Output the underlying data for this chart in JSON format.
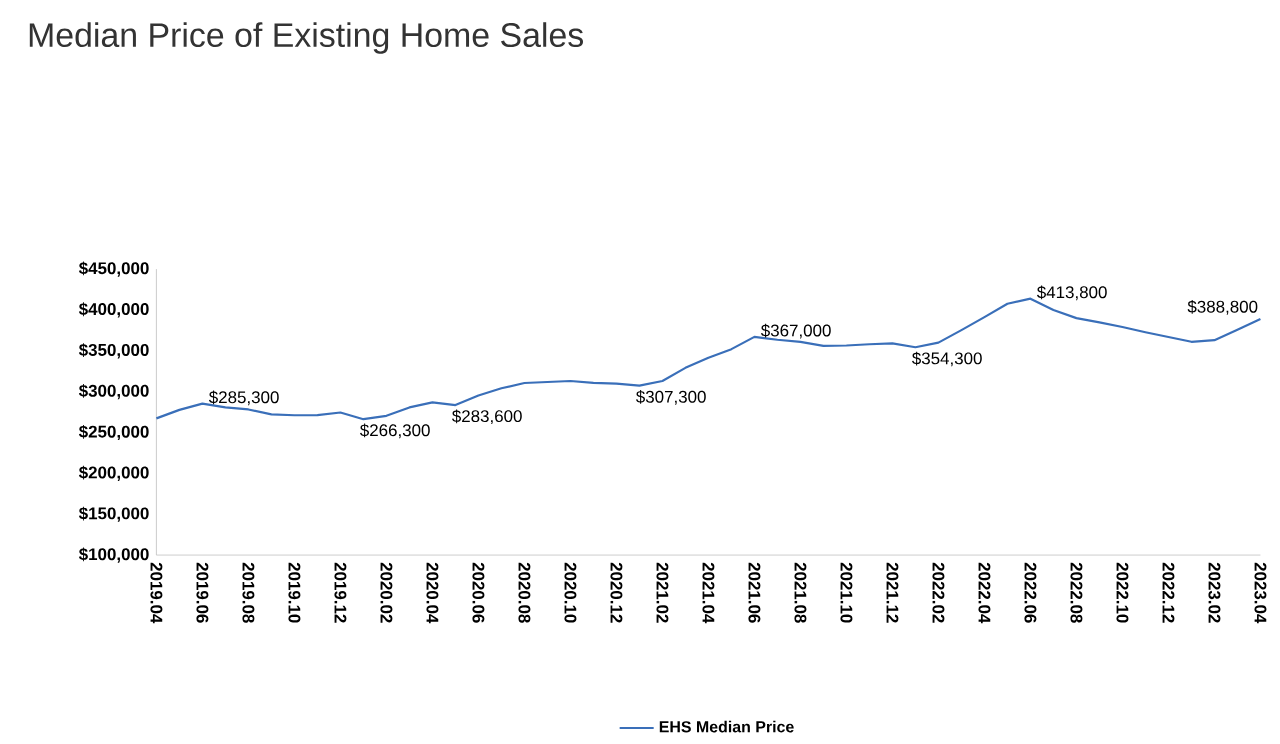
{
  "chart_data": {
    "type": "line",
    "title": "Median Price of Existing Home Sales",
    "categories": [
      "2019.04",
      null,
      "2019.06",
      null,
      "2019.08",
      null,
      "2019.10",
      null,
      "2019.12",
      null,
      "2020.02",
      null,
      "2020.04",
      null,
      "2020.06",
      null,
      "2020.08",
      null,
      "2020.10",
      null,
      "2020.12",
      null,
      "2021.02",
      null,
      "2021.04",
      null,
      "2021.06",
      null,
      "2021.08",
      null,
      "2021.10",
      null,
      "2021.12",
      null,
      "2022.02",
      null,
      "2022.04",
      null,
      "2022.06",
      null,
      "2022.08",
      null,
      "2022.10",
      null,
      "2022.12",
      null,
      "2023.02",
      null,
      "2023.04"
    ],
    "series": [
      {
        "name": "EHS Median Price",
        "color": "#3a6fb9",
        "values": [
          267300,
          277700,
          285300,
          280800,
          278200,
          272100,
          271100,
          271300,
          274500,
          266300,
          270400,
          280700,
          286800,
          283600,
          295300,
          304100,
          310600,
          311800,
          313000,
          310800,
          309800,
          307300,
          313000,
          329100,
          341600,
          352000,
          367000,
          363500,
          361000,
          356000,
          356500,
          358000,
          359000,
          354300,
          360000,
          375300,
          391200,
          407600,
          413800,
          400000,
          390000,
          384800,
          379100,
          372700,
          366900,
          361000,
          363000,
          375700,
          388800
        ],
        "value_labels": [
          null,
          null,
          "$285,300",
          null,
          null,
          null,
          null,
          null,
          null,
          "$266,300",
          null,
          null,
          null,
          "$283,600",
          null,
          null,
          null,
          null,
          null,
          null,
          null,
          "$307,300",
          null,
          null,
          null,
          null,
          "$367,000",
          null,
          null,
          null,
          null,
          null,
          null,
          "$354,300",
          null,
          null,
          null,
          null,
          "$413,800",
          null,
          null,
          null,
          null,
          null,
          null,
          null,
          null,
          null,
          "$388,800"
        ]
      }
    ],
    "ylim": [
      100000,
      450000
    ],
    "yticks": [
      {
        "value": 100000,
        "label": "$100,000"
      },
      {
        "value": 150000,
        "label": "$150,000"
      },
      {
        "value": 200000,
        "label": "$200,000"
      },
      {
        "value": 250000,
        "label": "$250,000"
      },
      {
        "value": 300000,
        "label": "$300,000"
      },
      {
        "value": 350000,
        "label": "$350,000"
      },
      {
        "value": 400000,
        "label": "$400,000"
      },
      {
        "value": 450000,
        "label": "$450,000"
      }
    ],
    "legend": "bottom",
    "grid": false,
    "marker": "none",
    "line_style": "solid"
  }
}
